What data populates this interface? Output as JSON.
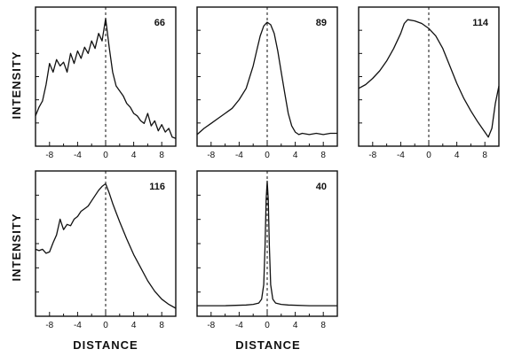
{
  "chart_data": [
    {
      "type": "line",
      "panel_label": "66",
      "ylabel": "INTENSITY",
      "xlabel": "",
      "xlim": [
        -10,
        10
      ],
      "xticks": [
        -8,
        -4,
        0,
        4,
        8
      ],
      "ylim": [
        0,
        1
      ],
      "x": [
        -10,
        -9.5,
        -9,
        -8.5,
        -8,
        -7.5,
        -7,
        -6.5,
        -6,
        -5.5,
        -5,
        -4.5,
        -4,
        -3.5,
        -3,
        -2.5,
        -2,
        -1.5,
        -1,
        -0.5,
        0,
        0.5,
        1,
        1.5,
        2,
        2.5,
        3,
        3.5,
        4,
        4.5,
        5,
        5.5,
        6,
        6.5,
        7,
        7.5,
        8,
        8.5,
        9,
        9.5,
        10
      ],
      "values": [
        0.2,
        0.27,
        0.32,
        0.45,
        0.62,
        0.55,
        0.65,
        0.6,
        0.63,
        0.55,
        0.7,
        0.62,
        0.72,
        0.66,
        0.75,
        0.7,
        0.8,
        0.74,
        0.86,
        0.8,
        0.98,
        0.75,
        0.55,
        0.44,
        0.4,
        0.36,
        0.3,
        0.27,
        0.22,
        0.2,
        0.16,
        0.14,
        0.22,
        0.12,
        0.16,
        0.08,
        0.13,
        0.07,
        0.1,
        0.03,
        0.02
      ]
    },
    {
      "type": "line",
      "panel_label": "89",
      "ylabel": "",
      "xlabel": "",
      "xlim": [
        -10,
        10
      ],
      "xticks": [
        -8,
        -4,
        0,
        4,
        8
      ],
      "ylim": [
        0,
        1
      ],
      "x": [
        -10,
        -9,
        -8,
        -7,
        -6,
        -5,
        -4,
        -3,
        -2,
        -1.5,
        -1,
        -0.5,
        0,
        0.5,
        1,
        1.5,
        2,
        2.5,
        3,
        3.5,
        4,
        4.5,
        5,
        6,
        7,
        8,
        9,
        10
      ],
      "values": [
        0.05,
        0.1,
        0.14,
        0.18,
        0.22,
        0.26,
        0.33,
        0.42,
        0.6,
        0.72,
        0.84,
        0.92,
        0.95,
        0.93,
        0.86,
        0.72,
        0.55,
        0.38,
        0.22,
        0.12,
        0.07,
        0.05,
        0.06,
        0.05,
        0.06,
        0.05,
        0.06,
        0.06
      ]
    },
    {
      "type": "line",
      "panel_label": "114",
      "ylabel": "",
      "xlabel": "",
      "xlim": [
        -10,
        10
      ],
      "xticks": [
        -8,
        -4,
        0,
        4,
        8
      ],
      "ylim": [
        0,
        1
      ],
      "x": [
        -10,
        -9,
        -8,
        -7,
        -6,
        -5,
        -4,
        -3.5,
        -3,
        -2,
        -1,
        0,
        1,
        2,
        3,
        4,
        5,
        6,
        7,
        8,
        8.5,
        9,
        9.5,
        10
      ],
      "values": [
        0.42,
        0.45,
        0.5,
        0.56,
        0.64,
        0.74,
        0.86,
        0.94,
        0.97,
        0.96,
        0.94,
        0.9,
        0.84,
        0.74,
        0.6,
        0.46,
        0.34,
        0.24,
        0.15,
        0.07,
        0.03,
        0.1,
        0.3,
        0.44
      ]
    },
    {
      "type": "line",
      "panel_label": "116",
      "ylabel": "INTENSITY",
      "xlabel": "DISTANCE",
      "xlim": [
        -10,
        10
      ],
      "xticks": [
        -8,
        -4,
        0,
        4,
        8
      ],
      "ylim": [
        0,
        1
      ],
      "x": [
        -10,
        -9.5,
        -9,
        -8.5,
        -8,
        -7.5,
        -7,
        -6.5,
        -6,
        -5.5,
        -5,
        -4.5,
        -4,
        -3.5,
        -3,
        -2.5,
        -2,
        -1.5,
        -1,
        -0.5,
        0,
        0.5,
        1,
        1.5,
        2,
        3,
        4,
        5,
        6,
        7,
        8,
        9,
        10
      ],
      "values": [
        0.47,
        0.46,
        0.47,
        0.44,
        0.45,
        0.52,
        0.58,
        0.7,
        0.62,
        0.66,
        0.65,
        0.7,
        0.72,
        0.76,
        0.78,
        0.8,
        0.84,
        0.88,
        0.92,
        0.95,
        0.97,
        0.9,
        0.82,
        0.75,
        0.68,
        0.55,
        0.43,
        0.33,
        0.23,
        0.15,
        0.09,
        0.05,
        0.02
      ]
    },
    {
      "type": "line",
      "panel_label": "40",
      "ylabel": "",
      "xlabel": "DISTANCE",
      "xlim": [
        -10,
        10
      ],
      "xticks": [
        -8,
        -4,
        0,
        4,
        8
      ],
      "ylim": [
        0,
        1
      ],
      "x": [
        -10,
        -6,
        -3,
        -2,
        -1.2,
        -0.8,
        -0.5,
        -0.3,
        -0.15,
        0,
        0.15,
        0.3,
        0.5,
        0.8,
        1.2,
        2,
        3,
        6,
        10
      ],
      "values": [
        0.04,
        0.04,
        0.045,
        0.05,
        0.06,
        0.09,
        0.2,
        0.5,
        0.85,
        0.99,
        0.85,
        0.5,
        0.2,
        0.09,
        0.06,
        0.05,
        0.045,
        0.04,
        0.04
      ]
    }
  ]
}
